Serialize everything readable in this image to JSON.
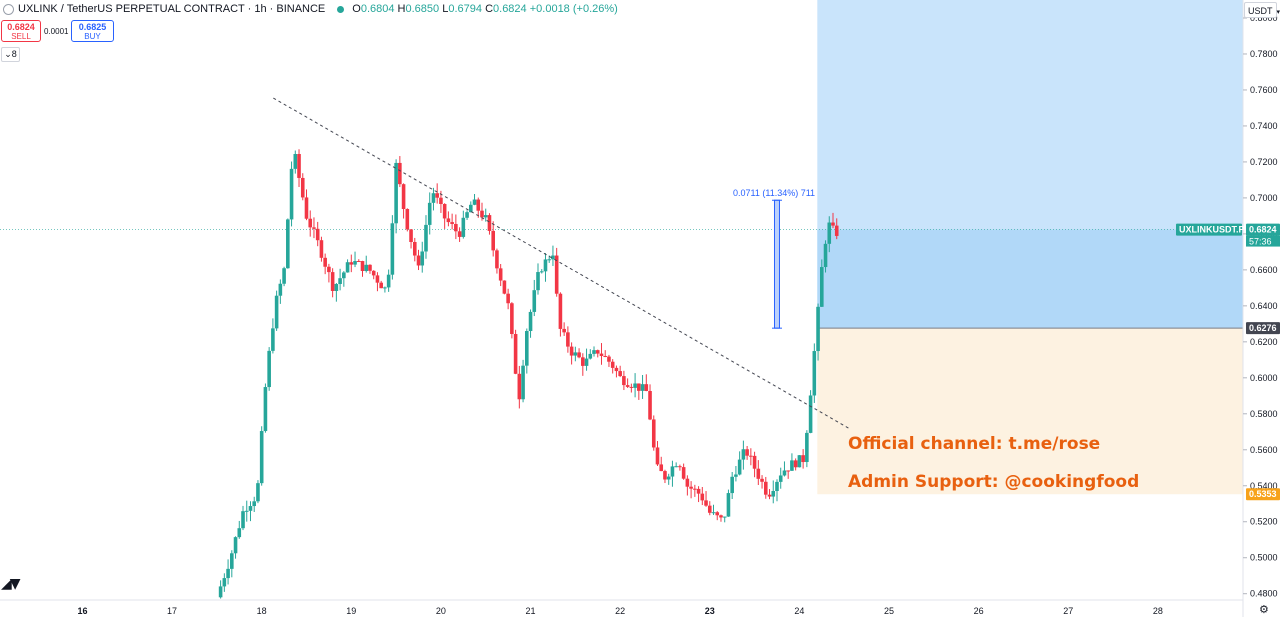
{
  "header": {
    "title": "UXLINK / TetherUS PERPETUAL CONTRACT · 1h · BINANCE",
    "open": "0.6804",
    "high": "0.6850",
    "low": "0.6794",
    "close": "0.6824",
    "change": "+0.0018 (+0.26%)"
  },
  "trade": {
    "sell_price": "0.6824",
    "sell_label": "SELL",
    "spread": "0.0001",
    "buy_price": "0.6825",
    "buy_label": "BUY"
  },
  "indicators_toggle": "8",
  "currency": "USDT",
  "annotations": {
    "channel": "Official channel: t.me/rose",
    "support": "Admin Support: @cookingfood"
  },
  "colors": {
    "up": "#26a69a",
    "down": "#f23645",
    "target_zone": "#c9e4fb",
    "stop_zone": "#fdf2e1",
    "annotation": "#e8600f"
  },
  "chart_data": {
    "type": "candlestick",
    "symbol_label": "UXLINKUSDT.P",
    "countdown": "57:36",
    "y_ticks": [
      "0.8000",
      "0.7800",
      "0.7600",
      "0.7400",
      "0.7200",
      "0.7000",
      "0.6800",
      "0.6600",
      "0.6400",
      "0.6200",
      "0.6000",
      "0.5800",
      "0.5600",
      "0.5400",
      "0.5200",
      "0.5000",
      "0.4800"
    ],
    "ylim": [
      0.4765,
      0.81
    ],
    "x_ticks": [
      {
        "label": "16",
        "day": 16
      },
      {
        "label": "17",
        "day": 17
      },
      {
        "label": "18",
        "day": 18
      },
      {
        "label": "19",
        "day": 19
      },
      {
        "label": "20",
        "day": 20
      },
      {
        "label": "21",
        "day": 21
      },
      {
        "label": "22",
        "day": 22
      },
      {
        "label": "23",
        "day": 23
      },
      {
        "label": "24",
        "day": 24
      },
      {
        "label": "25",
        "day": 25
      },
      {
        "label": "26",
        "day": 26
      },
      {
        "label": "27",
        "day": 27
      },
      {
        "label": "28",
        "day": 28
      }
    ],
    "xlim_days": [
      15.08,
      28.95
    ],
    "last_price": "0.6824",
    "entry_price": "0.6276",
    "stop_price": "0.5353",
    "position": {
      "start_day": 24.2,
      "end_day": 28.95,
      "entry": 0.6276,
      "target": 0.81,
      "stop": 0.5353
    },
    "measure": {
      "label": "0.0711 (11.34%) 711",
      "day": 23.75,
      "from": 0.6276,
      "to": 0.6987
    },
    "trendline": [
      {
        "day": 18.13,
        "price": 0.7555
      },
      {
        "day": 24.55,
        "price": 0.572
      }
    ],
    "key_points": [
      {
        "day": 17.5,
        "price": 0.478
      },
      {
        "day": 17.65,
        "price": 0.5
      },
      {
        "day": 17.8,
        "price": 0.527
      },
      {
        "day": 17.95,
        "price": 0.535
      },
      {
        "day": 18.05,
        "price": 0.6
      },
      {
        "day": 18.15,
        "price": 0.64
      },
      {
        "day": 18.25,
        "price": 0.66
      },
      {
        "day": 18.35,
        "price": 0.728
      },
      {
        "day": 18.5,
        "price": 0.69
      },
      {
        "day": 18.65,
        "price": 0.672
      },
      {
        "day": 18.8,
        "price": 0.65
      },
      {
        "day": 19.0,
        "price": 0.665
      },
      {
        "day": 19.2,
        "price": 0.66
      },
      {
        "day": 19.4,
        "price": 0.648
      },
      {
        "day": 19.5,
        "price": 0.718
      },
      {
        "day": 19.6,
        "price": 0.69
      },
      {
        "day": 19.75,
        "price": 0.66
      },
      {
        "day": 19.9,
        "price": 0.705
      },
      {
        "day": 20.05,
        "price": 0.688
      },
      {
        "day": 20.2,
        "price": 0.68
      },
      {
        "day": 20.35,
        "price": 0.698
      },
      {
        "day": 20.5,
        "price": 0.688
      },
      {
        "day": 20.6,
        "price": 0.668
      },
      {
        "day": 20.75,
        "price": 0.64
      },
      {
        "day": 20.87,
        "price": 0.588
      },
      {
        "day": 20.95,
        "price": 0.625
      },
      {
        "day": 21.1,
        "price": 0.66
      },
      {
        "day": 21.25,
        "price": 0.67
      },
      {
        "day": 21.32,
        "price": 0.628
      },
      {
        "day": 21.45,
        "price": 0.615
      },
      {
        "day": 21.6,
        "price": 0.608
      },
      {
        "day": 21.75,
        "price": 0.615
      },
      {
        "day": 21.9,
        "price": 0.608
      },
      {
        "day": 22.0,
        "price": 0.6
      },
      {
        "day": 22.2,
        "price": 0.595
      },
      {
        "day": 22.3,
        "price": 0.592
      },
      {
        "day": 22.4,
        "price": 0.55
      },
      {
        "day": 22.5,
        "price": 0.545
      },
      {
        "day": 22.65,
        "price": 0.555
      },
      {
        "day": 22.75,
        "price": 0.54
      },
      {
        "day": 22.9,
        "price": 0.535
      },
      {
        "day": 23.0,
        "price": 0.525
      },
      {
        "day": 23.15,
        "price": 0.52
      },
      {
        "day": 23.25,
        "price": 0.545
      },
      {
        "day": 23.4,
        "price": 0.56
      },
      {
        "day": 23.55,
        "price": 0.545
      },
      {
        "day": 23.65,
        "price": 0.535
      },
      {
        "day": 23.8,
        "price": 0.548
      },
      {
        "day": 23.95,
        "price": 0.553
      },
      {
        "day": 24.05,
        "price": 0.555
      },
      {
        "day": 24.12,
        "price": 0.59
      },
      {
        "day": 24.2,
        "price": 0.632
      },
      {
        "day": 24.27,
        "price": 0.672
      },
      {
        "day": 24.33,
        "price": 0.685
      },
      {
        "day": 24.4,
        "price": 0.68
      },
      {
        "day": 24.45,
        "price": 0.6824
      }
    ]
  }
}
